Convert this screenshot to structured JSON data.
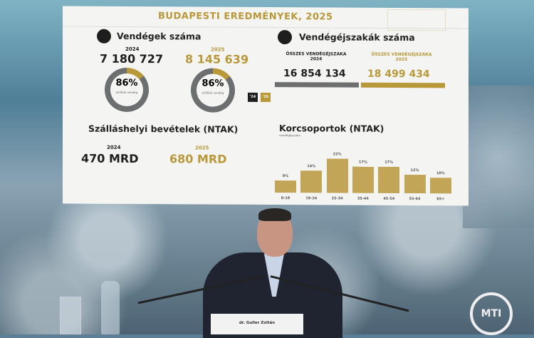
{
  "slide": {
    "title": "BUDAPESTI EREDMÉNYEK, 2025",
    "guests": {
      "heading": "Vendégek száma",
      "icon": "person-icon",
      "y2024": {
        "year": "2024",
        "value": "7 180 727",
        "pct": "86%",
        "pct_label": "külföldi vendég",
        "foreign_share": 86
      },
      "y2025": {
        "year": "2025",
        "value": "8 145 639",
        "pct": "86%",
        "pct_label": "külföldi vendég",
        "foreign_share": 86
      },
      "legend": [
        "'24",
        "'25"
      ]
    },
    "nights": {
      "heading": "Vendégéjszakák száma",
      "icon": "moon-icon",
      "y2024": {
        "label": "ÖSSZES VENDÉGÉJSZAKA",
        "year": "2024",
        "value": "16 854 134"
      },
      "y2025": {
        "label": "ÖSSZES VENDÉGÉJSZAKA",
        "year": "2025",
        "value": "18 499 434"
      }
    },
    "revenue": {
      "heading": "Szálláshelyi bevételek (NTAK)",
      "y2024": {
        "year": "2024",
        "value": "470 MRD"
      },
      "y2025": {
        "year": "2025",
        "value": "680 MRD"
      }
    },
    "colors": {
      "gold": "#b9983a",
      "gray": "#6d6e70"
    }
  },
  "chart_data": {
    "type": "bar",
    "title": "Korcsoportok (NTAK)",
    "subtitle": "vendégéjszaka",
    "categories": [
      "0-18",
      "19-24",
      "25-34",
      "35-44",
      "45-54",
      "55-64",
      "65+"
    ],
    "values": [
      8,
      14,
      22,
      17,
      17,
      12,
      10
    ],
    "value_labels": [
      "8%",
      "14%",
      "22%",
      "17%",
      "17%",
      "12%",
      "10%"
    ]
  },
  "nameplate": {
    "name": "dr. Guller Zoltán"
  },
  "watermark": "MTI"
}
